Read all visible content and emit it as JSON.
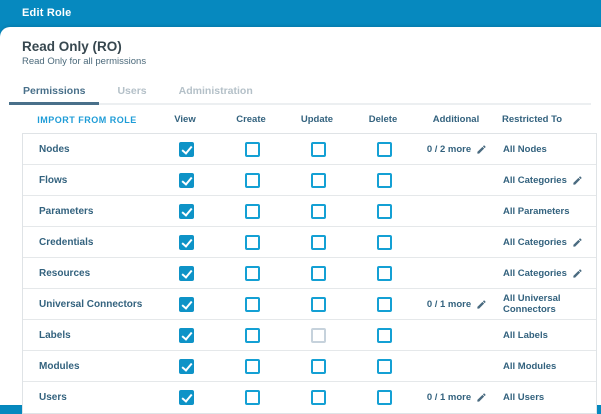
{
  "window": {
    "title": "Edit Role"
  },
  "role": {
    "name": "Read Only (RO)",
    "description": "Read Only for all permissions"
  },
  "tabs": [
    {
      "label": "Permissions",
      "active": true
    },
    {
      "label": "Users",
      "active": false
    },
    {
      "label": "Administration",
      "active": false
    }
  ],
  "toolbar": {
    "import_button": "IMPORT FROM ROLE"
  },
  "table": {
    "columns": [
      "View",
      "Create",
      "Update",
      "Delete",
      "Additional",
      "Restricted To"
    ],
    "rows": [
      {
        "name": "Nodes",
        "view": true,
        "create": false,
        "update": false,
        "delete": false,
        "update_disabled": false,
        "additional": "0 / 2 more",
        "additional_edit": true,
        "restricted": "All Nodes",
        "restricted_edit": false
      },
      {
        "name": "Flows",
        "view": true,
        "create": false,
        "update": false,
        "delete": false,
        "update_disabled": false,
        "additional": "",
        "additional_edit": false,
        "restricted": "All Categories",
        "restricted_edit": true
      },
      {
        "name": "Parameters",
        "view": true,
        "create": false,
        "update": false,
        "delete": false,
        "update_disabled": false,
        "additional": "",
        "additional_edit": false,
        "restricted": "All Parameters",
        "restricted_edit": false
      },
      {
        "name": "Credentials",
        "view": true,
        "create": false,
        "update": false,
        "delete": false,
        "update_disabled": false,
        "additional": "",
        "additional_edit": false,
        "restricted": "All Categories",
        "restricted_edit": true
      },
      {
        "name": "Resources",
        "view": true,
        "create": false,
        "update": false,
        "delete": false,
        "update_disabled": false,
        "additional": "",
        "additional_edit": false,
        "restricted": "All Categories",
        "restricted_edit": true
      },
      {
        "name": "Universal Connectors",
        "view": true,
        "create": false,
        "update": false,
        "delete": false,
        "update_disabled": false,
        "additional": "0 / 1 more",
        "additional_edit": true,
        "restricted": "All Universal Connectors",
        "restricted_edit": false
      },
      {
        "name": "Labels",
        "view": true,
        "create": false,
        "update": false,
        "delete": false,
        "update_disabled": true,
        "additional": "",
        "additional_edit": false,
        "restricted": "All Labels",
        "restricted_edit": false
      },
      {
        "name": "Modules",
        "view": true,
        "create": false,
        "update": false,
        "delete": false,
        "update_disabled": false,
        "additional": "",
        "additional_edit": false,
        "restricted": "All Modules",
        "restricted_edit": false
      },
      {
        "name": "Users",
        "view": true,
        "create": false,
        "update": false,
        "delete": false,
        "update_disabled": false,
        "additional": "0 / 1 more",
        "additional_edit": true,
        "restricted": "All Users",
        "restricted_edit": false
      }
    ]
  },
  "colors": {
    "topbar": "#0689bf",
    "checkbox_checked": "#0e93c7",
    "checkbox_border": "#14a0d4",
    "checkbox_disabled_border": "#c6d2dc",
    "accent_link": "#1e9cd7",
    "text_primary": "#33627e",
    "tab_active": "#49708a",
    "tab_inactive": "#b4c0c8"
  }
}
